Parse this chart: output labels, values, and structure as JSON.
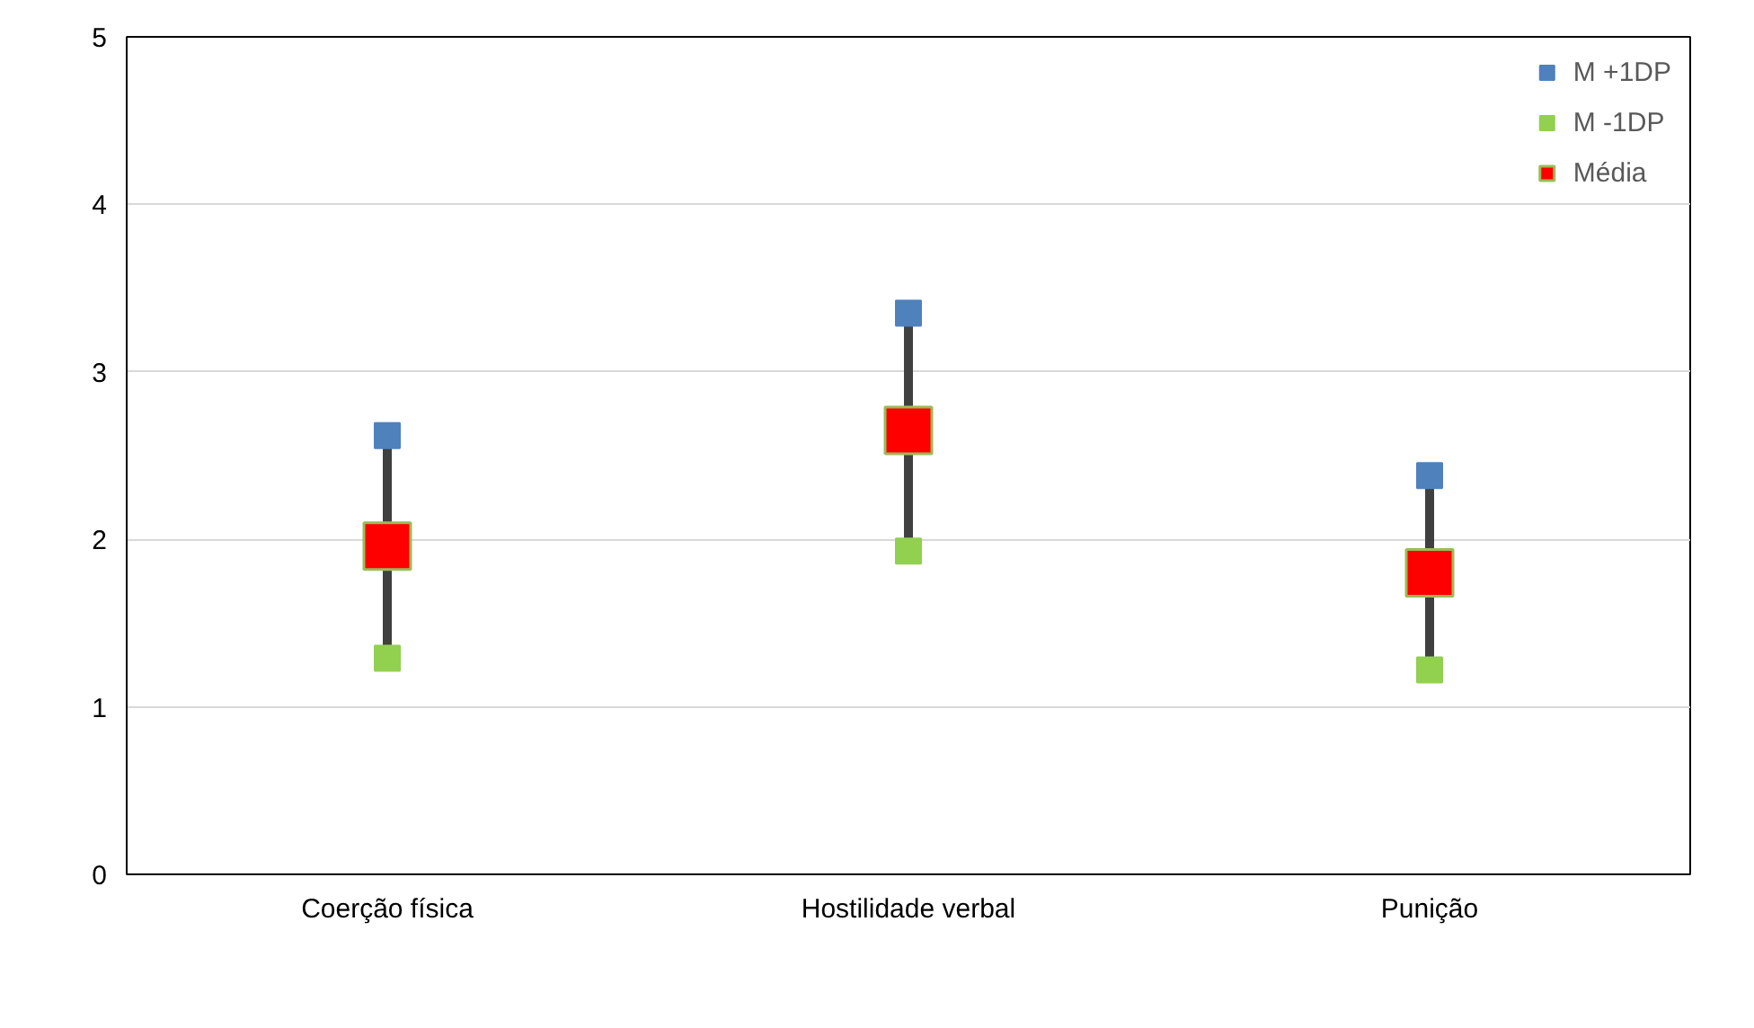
{
  "chart_data": {
    "type": "scatter",
    "categories": [
      "Coerção física",
      "Hostilidade verbal",
      "Punição"
    ],
    "ylim": [
      0,
      5
    ],
    "yticks": [
      0,
      1,
      2,
      3,
      4,
      5
    ],
    "grid": "y",
    "legend": "top right",
    "series": [
      {
        "name": "M +1DP",
        "color": "#4f81bd",
        "marker": "square",
        "values": [
          2.62,
          3.35,
          2.38
        ]
      },
      {
        "name": "M -1DP",
        "color": "#92d050",
        "marker": "square",
        "values": [
          1.29,
          1.93,
          1.22
        ]
      },
      {
        "name": "Média",
        "color": "#ff0000",
        "marker": "square",
        "values": [
          1.96,
          2.65,
          1.8
        ]
      }
    ]
  }
}
